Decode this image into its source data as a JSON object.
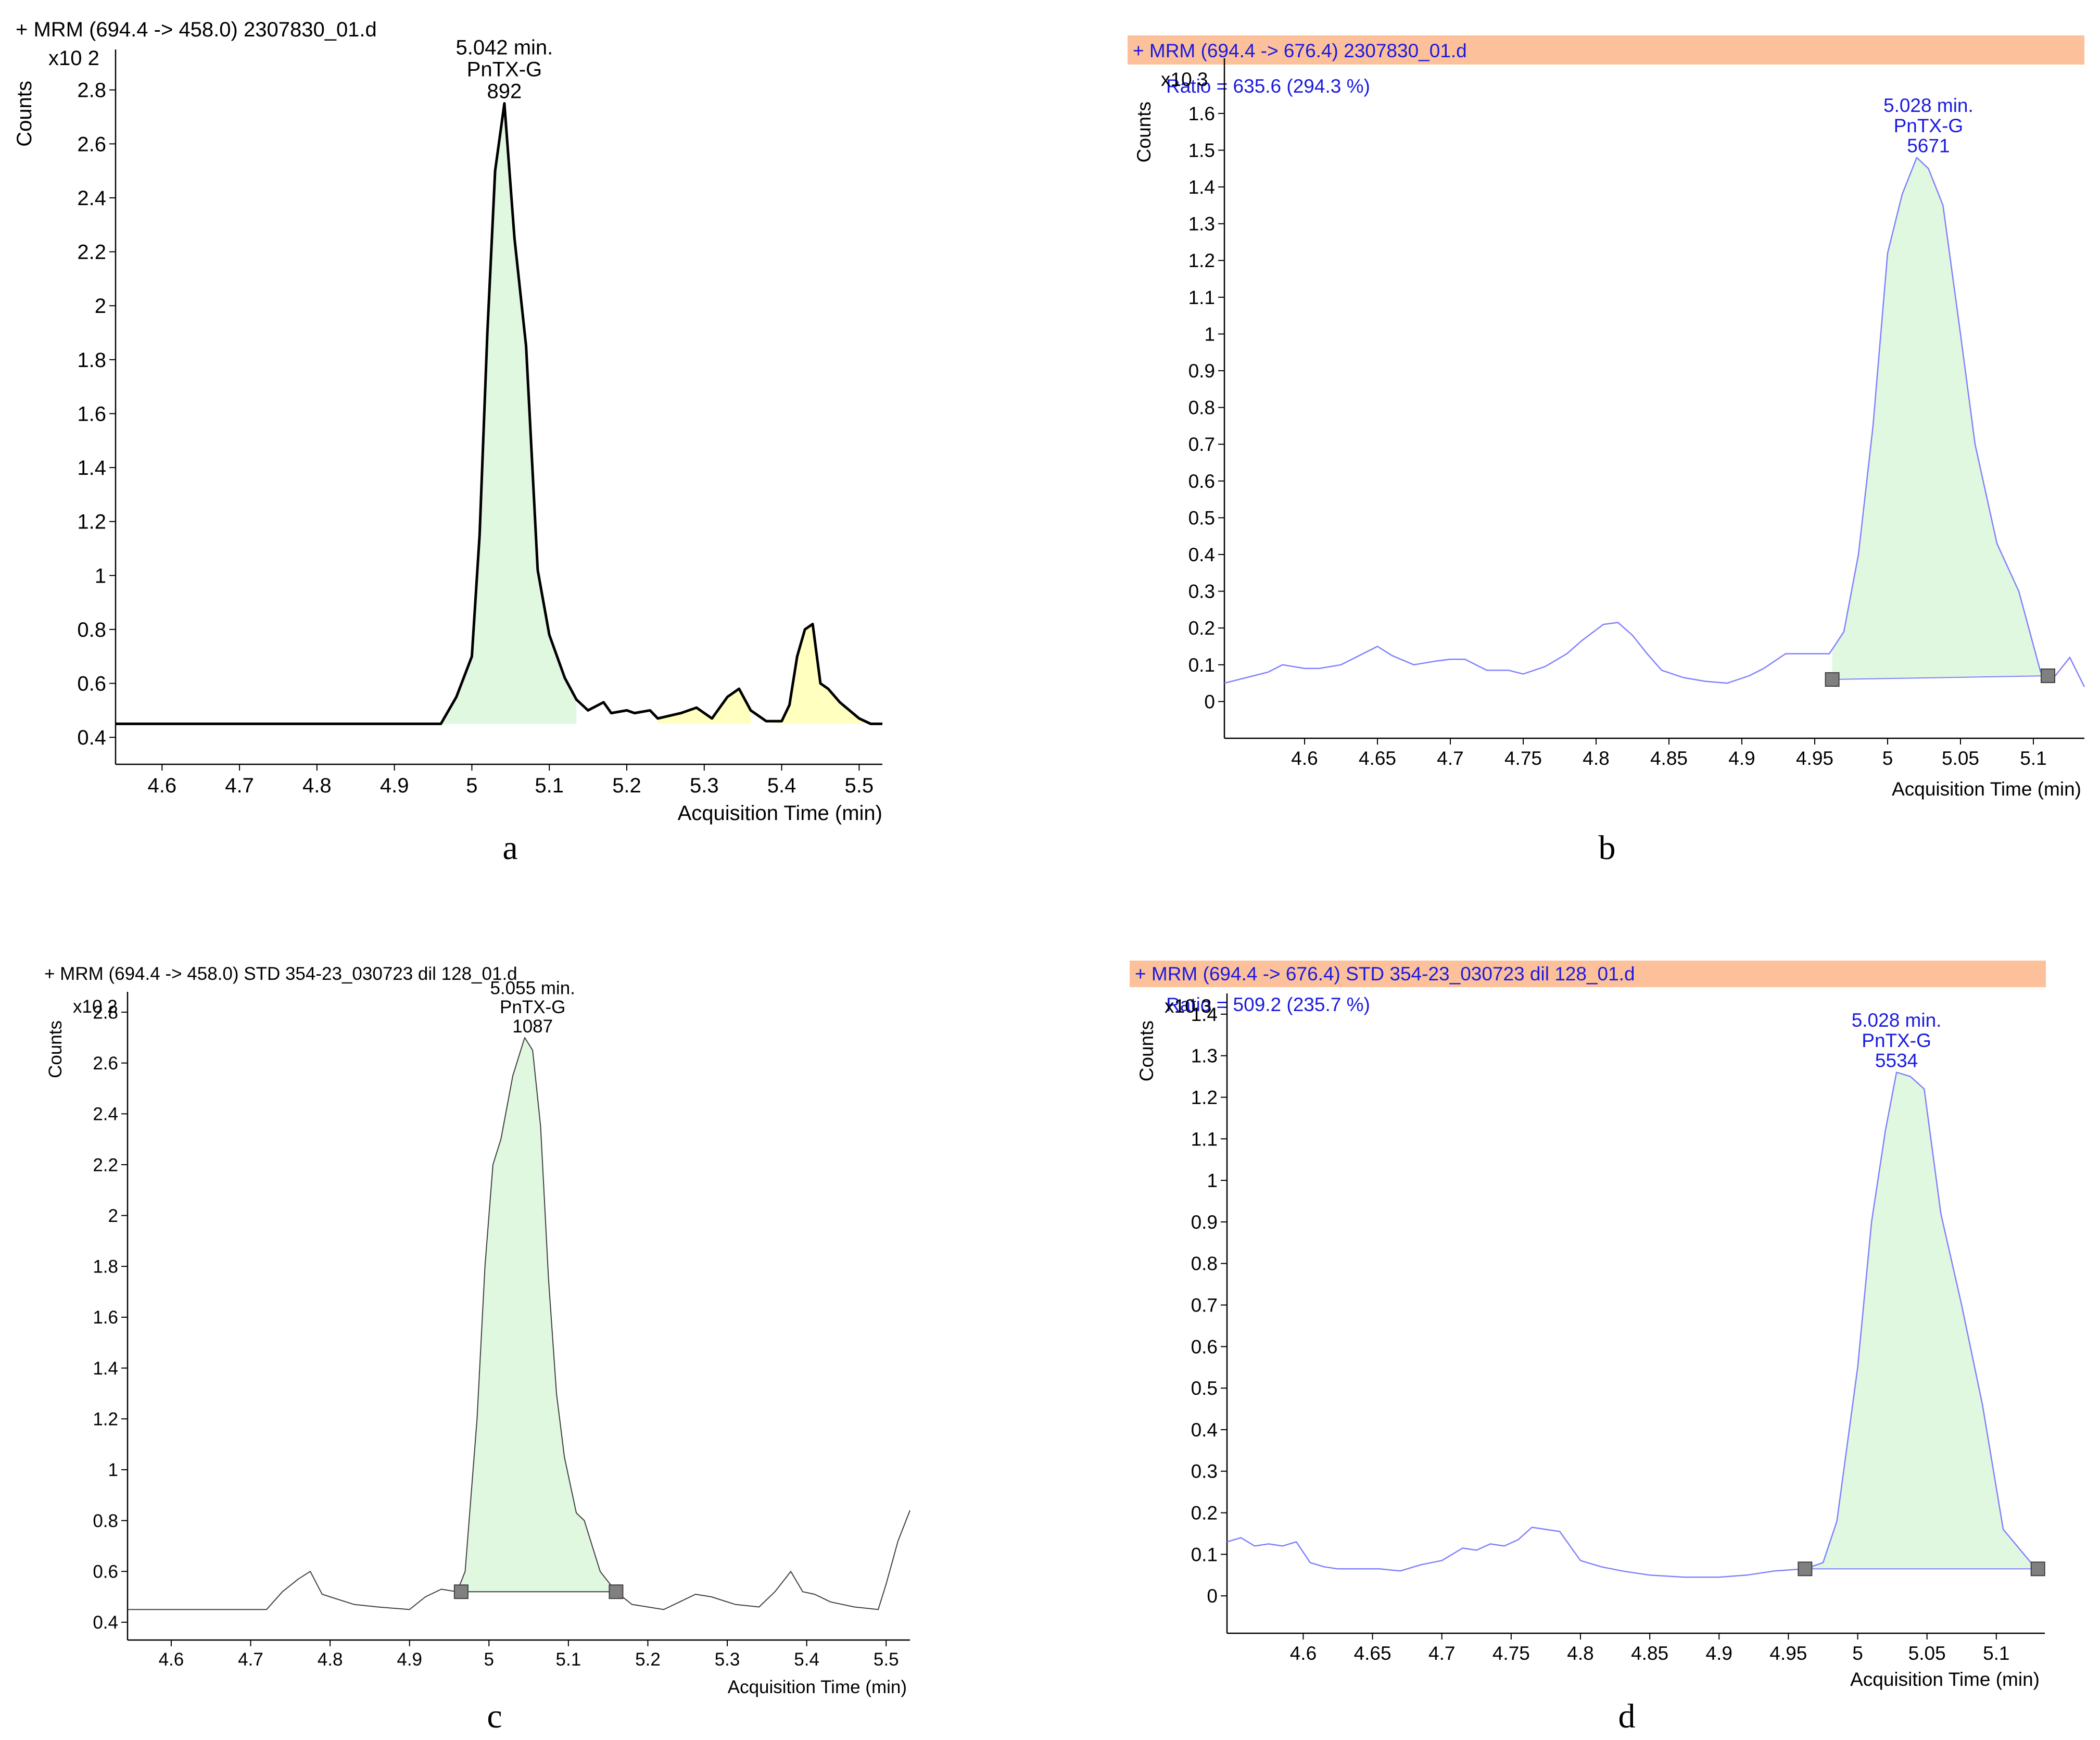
{
  "colors": {
    "header_band": "#fcc09a",
    "trace_blue": "#8080ff",
    "text_blue": "#1a1ae0",
    "trace_black": "#000000",
    "peak_fill_green": "#e0f8e0",
    "peak_fill_yellow": "#ffffc0",
    "marker": "#808080"
  },
  "chart_data": [
    {
      "type": "line",
      "panel": "a",
      "caption": "a",
      "header": "+ MRM (694.4 -> 458.0) 2307830_01.d",
      "ylabel": "Counts",
      "yexponent": "x10 2",
      "xlabel": "Acquisition Time (min)",
      "xlim": [
        4.54,
        5.53
      ],
      "ylim": [
        0.3,
        2.95
      ],
      "xticks": [
        "4.6",
        "4.7",
        "4.8",
        "4.9",
        "5",
        "5.1",
        "5.2",
        "5.3",
        "5.4",
        "5.5"
      ],
      "yticks": [
        "0.4",
        "0.6",
        "0.8",
        "1",
        "1.2",
        "1.4",
        "1.6",
        "1.8",
        "2",
        "2.2",
        "2.4",
        "2.6",
        "2.8"
      ],
      "peak_annotation": [
        "5.042 min.",
        "PnTX-G",
        "892"
      ],
      "peak_apex": [
        5.042,
        2.75
      ],
      "series": [
        {
          "x": [
            4.54,
            4.96,
            4.98,
            5.0,
            5.01,
            5.02,
            5.03,
            5.042,
            5.055,
            5.07,
            5.085,
            5.1,
            5.12,
            5.135,
            5.15,
            5.17,
            5.18,
            5.2,
            5.21,
            5.23,
            5.24,
            5.27,
            5.29,
            5.31,
            5.32,
            5.33,
            5.345,
            5.36,
            5.38,
            5.4,
            5.41,
            5.42,
            5.43,
            5.44,
            5.45,
            5.46,
            5.475,
            5.5,
            5.515,
            5.53
          ],
          "y": [
            0.45,
            0.45,
            0.55,
            0.7,
            1.15,
            1.9,
            2.5,
            2.75,
            2.25,
            1.85,
            1.02,
            0.78,
            0.62,
            0.54,
            0.5,
            0.53,
            0.49,
            0.5,
            0.49,
            0.5,
            0.47,
            0.49,
            0.51,
            0.47,
            0.51,
            0.55,
            0.58,
            0.5,
            0.46,
            0.46,
            0.52,
            0.7,
            0.8,
            0.82,
            0.6,
            0.58,
            0.53,
            0.47,
            0.45,
            0.45
          ]
        }
      ],
      "integration_shading": [
        {
          "color": "green",
          "x": [
            4.96,
            5.135
          ]
        },
        {
          "color": "yellow",
          "x": [
            5.24,
            5.36
          ]
        },
        {
          "color": "yellow",
          "x": [
            5.39,
            5.53
          ]
        }
      ]
    },
    {
      "type": "line",
      "panel": "b",
      "caption": "b",
      "header": "+ MRM (694.4 -> 676.4) 2307830_01.d",
      "ratio": "Ratio = 635.6 (294.3 %)",
      "ylabel": "Counts",
      "yexponent": "x10 3",
      "xlabel": "Acquisition Time (min)",
      "xlim": [
        4.545,
        5.135
      ],
      "ylim": [
        -0.1,
        1.75
      ],
      "xticks": [
        "4.6",
        "4.65",
        "4.7",
        "4.75",
        "4.8",
        "4.85",
        "4.9",
        "4.95",
        "5",
        "5.05",
        "5.1"
      ],
      "yticks": [
        "0",
        "0.1",
        "0.2",
        "0.3",
        "0.4",
        "0.5",
        "0.6",
        "0.7",
        "0.8",
        "0.9",
        "1",
        "1.1",
        "1.2",
        "1.3",
        "1.4",
        "1.5",
        "1.6"
      ],
      "peak_annotation": [
        "5.028 min.",
        "PnTX-G",
        "5671"
      ],
      "peak_apex": [
        5.028,
        1.48
      ],
      "series": [
        {
          "x": [
            4.545,
            4.56,
            4.575,
            4.585,
            4.6,
            4.61,
            4.625,
            4.64,
            4.65,
            4.66,
            4.675,
            4.69,
            4.7,
            4.71,
            4.725,
            4.74,
            4.75,
            4.765,
            4.78,
            4.79,
            4.805,
            4.815,
            4.825,
            4.835,
            4.845,
            4.86,
            4.875,
            4.89,
            4.905,
            4.915,
            4.93,
            4.945,
            4.96,
            4.97,
            4.98,
            4.99,
            5.0,
            5.01,
            5.02,
            5.028,
            5.038,
            5.05,
            5.06,
            5.075,
            5.09,
            5.105,
            5.115,
            5.125,
            5.135
          ],
          "y": [
            0.05,
            0.065,
            0.08,
            0.1,
            0.09,
            0.09,
            0.1,
            0.13,
            0.15,
            0.125,
            0.1,
            0.11,
            0.115,
            0.115,
            0.085,
            0.085,
            0.075,
            0.095,
            0.13,
            0.165,
            0.21,
            0.215,
            0.18,
            0.13,
            0.085,
            0.065,
            0.055,
            0.05,
            0.07,
            0.09,
            0.13,
            0.13,
            0.13,
            0.19,
            0.4,
            0.75,
            1.22,
            1.38,
            1.48,
            1.45,
            1.35,
            1.0,
            0.7,
            0.43,
            0.3,
            0.08,
            0.07,
            0.12,
            0.04
          ]
        }
      ],
      "integration_baseline": {
        "x": [
          4.962,
          5.11
        ],
        "y": [
          0.06,
          0.07
        ]
      },
      "integration_shading": [
        {
          "color": "green",
          "x": [
            4.962,
            5.11
          ]
        }
      ]
    },
    {
      "type": "line",
      "panel": "c",
      "caption": "c",
      "header": "+ MRM (694.4 -> 458.0) STD 354-23_030723 dil 128_01.d",
      "ylabel": "Counts",
      "yexponent": "x10 2",
      "xlabel": "Acquisition Time (min)",
      "xlim": [
        4.545,
        5.53
      ],
      "ylim": [
        0.33,
        2.88
      ],
      "xticks": [
        "4.6",
        "4.7",
        "4.8",
        "4.9",
        "5",
        "5.1",
        "5.2",
        "5.3",
        "5.4",
        "5.5"
      ],
      "yticks": [
        "0.4",
        "0.6",
        "0.8",
        "1",
        "1.2",
        "1.4",
        "1.6",
        "1.8",
        "2",
        "2.2",
        "2.4",
        "2.6",
        "2.8"
      ],
      "peak_annotation": [
        "5.055 min.",
        "PnTX-G",
        "1087"
      ],
      "peak_apex": [
        5.055,
        2.7
      ],
      "series": [
        {
          "x": [
            4.545,
            4.72,
            4.74,
            4.76,
            4.775,
            4.79,
            4.8,
            4.83,
            4.86,
            4.9,
            4.92,
            4.94,
            4.96,
            4.97,
            4.985,
            4.995,
            5.005,
            5.015,
            5.03,
            5.045,
            5.055,
            5.065,
            5.075,
            5.085,
            5.095,
            5.11,
            5.12,
            5.14,
            5.16,
            5.18,
            5.2,
            5.22,
            5.24,
            5.26,
            5.28,
            5.31,
            5.34,
            5.36,
            5.37,
            5.38,
            5.395,
            5.41,
            5.43,
            5.46,
            5.49,
            5.5,
            5.515,
            5.53
          ],
          "y": [
            0.45,
            0.45,
            0.52,
            0.57,
            0.6,
            0.51,
            0.5,
            0.47,
            0.46,
            0.45,
            0.5,
            0.53,
            0.52,
            0.6,
            1.2,
            1.8,
            2.2,
            2.3,
            2.55,
            2.7,
            2.65,
            2.35,
            1.75,
            1.3,
            1.05,
            0.83,
            0.8,
            0.6,
            0.52,
            0.47,
            0.46,
            0.45,
            0.48,
            0.51,
            0.5,
            0.47,
            0.46,
            0.52,
            0.56,
            0.6,
            0.52,
            0.51,
            0.48,
            0.46,
            0.45,
            0.55,
            0.72,
            0.84
          ]
        }
      ],
      "integration_baseline": {
        "x": [
          4.965,
          5.16
        ],
        "y": [
          0.52,
          0.52
        ]
      },
      "integration_shading": [
        {
          "color": "green",
          "x": [
            4.965,
            5.16
          ]
        }
      ]
    },
    {
      "type": "line",
      "panel": "d",
      "caption": "d",
      "header": "+ MRM (694.4 -> 676.4) STD 354-23_030723 dil 128_01.d",
      "ratio": "Ratio = 509.2 (235.7 %)",
      "ylabel": "Counts",
      "yexponent": "x10 3",
      "xlabel": "Acquisition Time (min)",
      "xlim": [
        4.545,
        5.135
      ],
      "ylim": [
        -0.09,
        1.45
      ],
      "xticks": [
        "4.6",
        "4.65",
        "4.7",
        "4.75",
        "4.8",
        "4.85",
        "4.9",
        "4.95",
        "5",
        "5.05",
        "5.1"
      ],
      "yticks": [
        "0",
        "0.1",
        "0.2",
        "0.3",
        "0.4",
        "0.5",
        "0.6",
        "0.7",
        "0.8",
        "0.9",
        "1",
        "1.1",
        "1.2",
        "1.3",
        "1.4"
      ],
      "peak_annotation": [
        "5.028 min.",
        "PnTX-G",
        "5534"
      ],
      "peak_apex": [
        5.028,
        1.26
      ],
      "series": [
        {
          "x": [
            4.545,
            4.555,
            4.565,
            4.575,
            4.585,
            4.595,
            4.605,
            4.615,
            4.625,
            4.64,
            4.655,
            4.67,
            4.685,
            4.7,
            4.715,
            4.725,
            4.735,
            4.745,
            4.755,
            4.765,
            4.775,
            4.785,
            4.8,
            4.815,
            4.83,
            4.85,
            4.875,
            4.9,
            4.92,
            4.94,
            4.962,
            4.975,
            4.985,
            5.0,
            5.01,
            5.02,
            5.028,
            5.038,
            5.048,
            5.06,
            5.075,
            5.09,
            5.105,
            5.13
          ],
          "y": [
            0.13,
            0.14,
            0.12,
            0.125,
            0.12,
            0.13,
            0.08,
            0.07,
            0.065,
            0.065,
            0.065,
            0.06,
            0.075,
            0.085,
            0.115,
            0.11,
            0.125,
            0.12,
            0.135,
            0.165,
            0.16,
            0.155,
            0.085,
            0.07,
            0.06,
            0.05,
            0.045,
            0.045,
            0.05,
            0.06,
            0.065,
            0.08,
            0.18,
            0.55,
            0.9,
            1.12,
            1.26,
            1.25,
            1.22,
            0.92,
            0.7,
            0.46,
            0.16,
            0.06
          ]
        }
      ],
      "integration_baseline": {
        "x": [
          4.962,
          5.13
        ],
        "y": [
          0.065,
          0.065
        ]
      },
      "integration_shading": [
        {
          "color": "green",
          "x": [
            4.962,
            5.13
          ]
        }
      ]
    }
  ]
}
